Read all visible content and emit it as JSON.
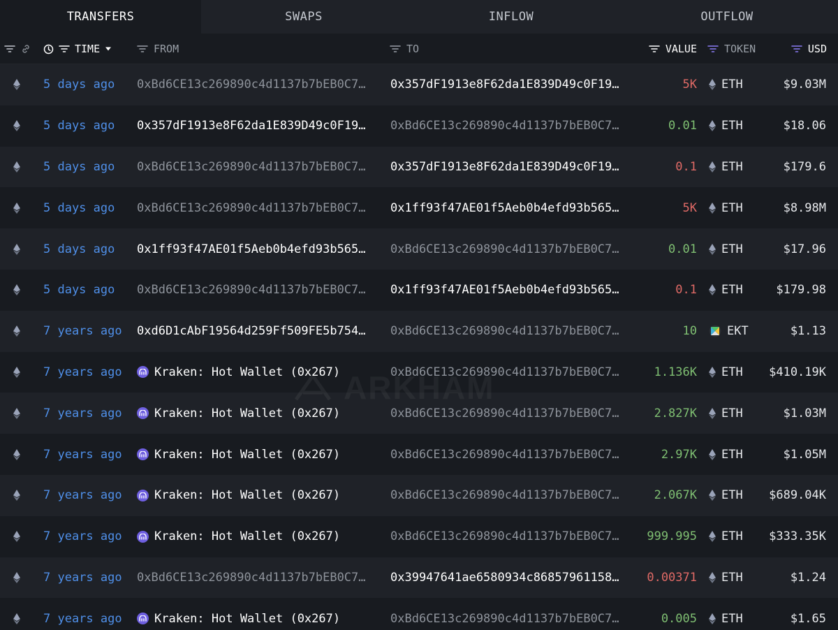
{
  "tabs": [
    {
      "label": "TRANSFERS",
      "active": true
    },
    {
      "label": "SWAPS",
      "active": false
    },
    {
      "label": "INFLOW",
      "active": false
    },
    {
      "label": "OUTFLOW",
      "active": false
    }
  ],
  "headers": {
    "time": "TIME",
    "from": "FROM",
    "to": "TO",
    "value": "VALUE",
    "token": "TOKEN",
    "usd": "USD"
  },
  "colors": {
    "link": "#4f8fe8",
    "negative": "#e06a66",
    "positive": "#7fbf72",
    "kraken": "#6e5fe0",
    "accent_filter": "#8b7cf6"
  },
  "watermark": "ARKHAM",
  "rows": [
    {
      "time": "5 days ago",
      "from": "0xBd6CE13c269890c4d1137b7bEB0C7…",
      "to": "0x357dF1913e8F62da1E839D49c0F19…",
      "value": "5K",
      "token": "ETH",
      "usd": "$9.03M"
    },
    {
      "time": "5 days ago",
      "from": "0x357dF1913e8F62da1E839D49c0F19…",
      "to": "0xBd6CE13c269890c4d1137b7bEB0C7…",
      "value": "0.01",
      "token": "ETH",
      "usd": "$18.06"
    },
    {
      "time": "5 days ago",
      "from": "0xBd6CE13c269890c4d1137b7bEB0C7…",
      "to": "0x357dF1913e8F62da1E839D49c0F19…",
      "value": "0.1",
      "token": "ETH",
      "usd": "$179.6"
    },
    {
      "time": "5 days ago",
      "from": "0xBd6CE13c269890c4d1137b7bEB0C7…",
      "to": "0x1ff93f47AE01f5Aeb0b4efd93b565…",
      "value": "5K",
      "token": "ETH",
      "usd": "$8.98M"
    },
    {
      "time": "5 days ago",
      "from": "0x1ff93f47AE01f5Aeb0b4efd93b565…",
      "to": "0xBd6CE13c269890c4d1137b7bEB0C7…",
      "value": "0.01",
      "token": "ETH",
      "usd": "$17.96"
    },
    {
      "time": "5 days ago",
      "from": "0xBd6CE13c269890c4d1137b7bEB0C7…",
      "to": "0x1ff93f47AE01f5Aeb0b4efd93b565…",
      "value": "0.1",
      "token": "ETH",
      "usd": "$179.98"
    },
    {
      "time": "7 years ago",
      "from": "0xd6D1cAbF19564d259Ff509FE5b754…",
      "to": "0xBd6CE13c269890c4d1137b7bEB0C7…",
      "value": "10",
      "token": "EKT",
      "usd": "$1.13"
    },
    {
      "time": "7 years ago",
      "from": "Kraken: Hot Wallet (0x267)",
      "to": "0xBd6CE13c269890c4d1137b7bEB0C7…",
      "value": "1.136K",
      "token": "ETH",
      "usd": "$410.19K"
    },
    {
      "time": "7 years ago",
      "from": "Kraken: Hot Wallet (0x267)",
      "to": "0xBd6CE13c269890c4d1137b7bEB0C7…",
      "value": "2.827K",
      "token": "ETH",
      "usd": "$1.03M"
    },
    {
      "time": "7 years ago",
      "from": "Kraken: Hot Wallet (0x267)",
      "to": "0xBd6CE13c269890c4d1137b7bEB0C7…",
      "value": "2.97K",
      "token": "ETH",
      "usd": "$1.05M"
    },
    {
      "time": "7 years ago",
      "from": "Kraken: Hot Wallet (0x267)",
      "to": "0xBd6CE13c269890c4d1137b7bEB0C7…",
      "value": "2.067K",
      "token": "ETH",
      "usd": "$689.04K"
    },
    {
      "time": "7 years ago",
      "from": "Kraken: Hot Wallet (0x267)",
      "to": "0xBd6CE13c269890c4d1137b7bEB0C7…",
      "value": "999.995",
      "token": "ETH",
      "usd": "$333.35K"
    },
    {
      "time": "7 years ago",
      "from": "0xBd6CE13c269890c4d1137b7bEB0C7…",
      "to": "0x39947641ae6580934c86857961158…",
      "value": "0.00371",
      "token": "ETH",
      "usd": "$1.24"
    },
    {
      "time": "7 years ago",
      "from": "Kraken: Hot Wallet (0x267)",
      "to": "0xBd6CE13c269890c4d1137b7bEB0C7…",
      "value": "0.005",
      "token": "ETH",
      "usd": "$1.65"
    }
  ]
}
